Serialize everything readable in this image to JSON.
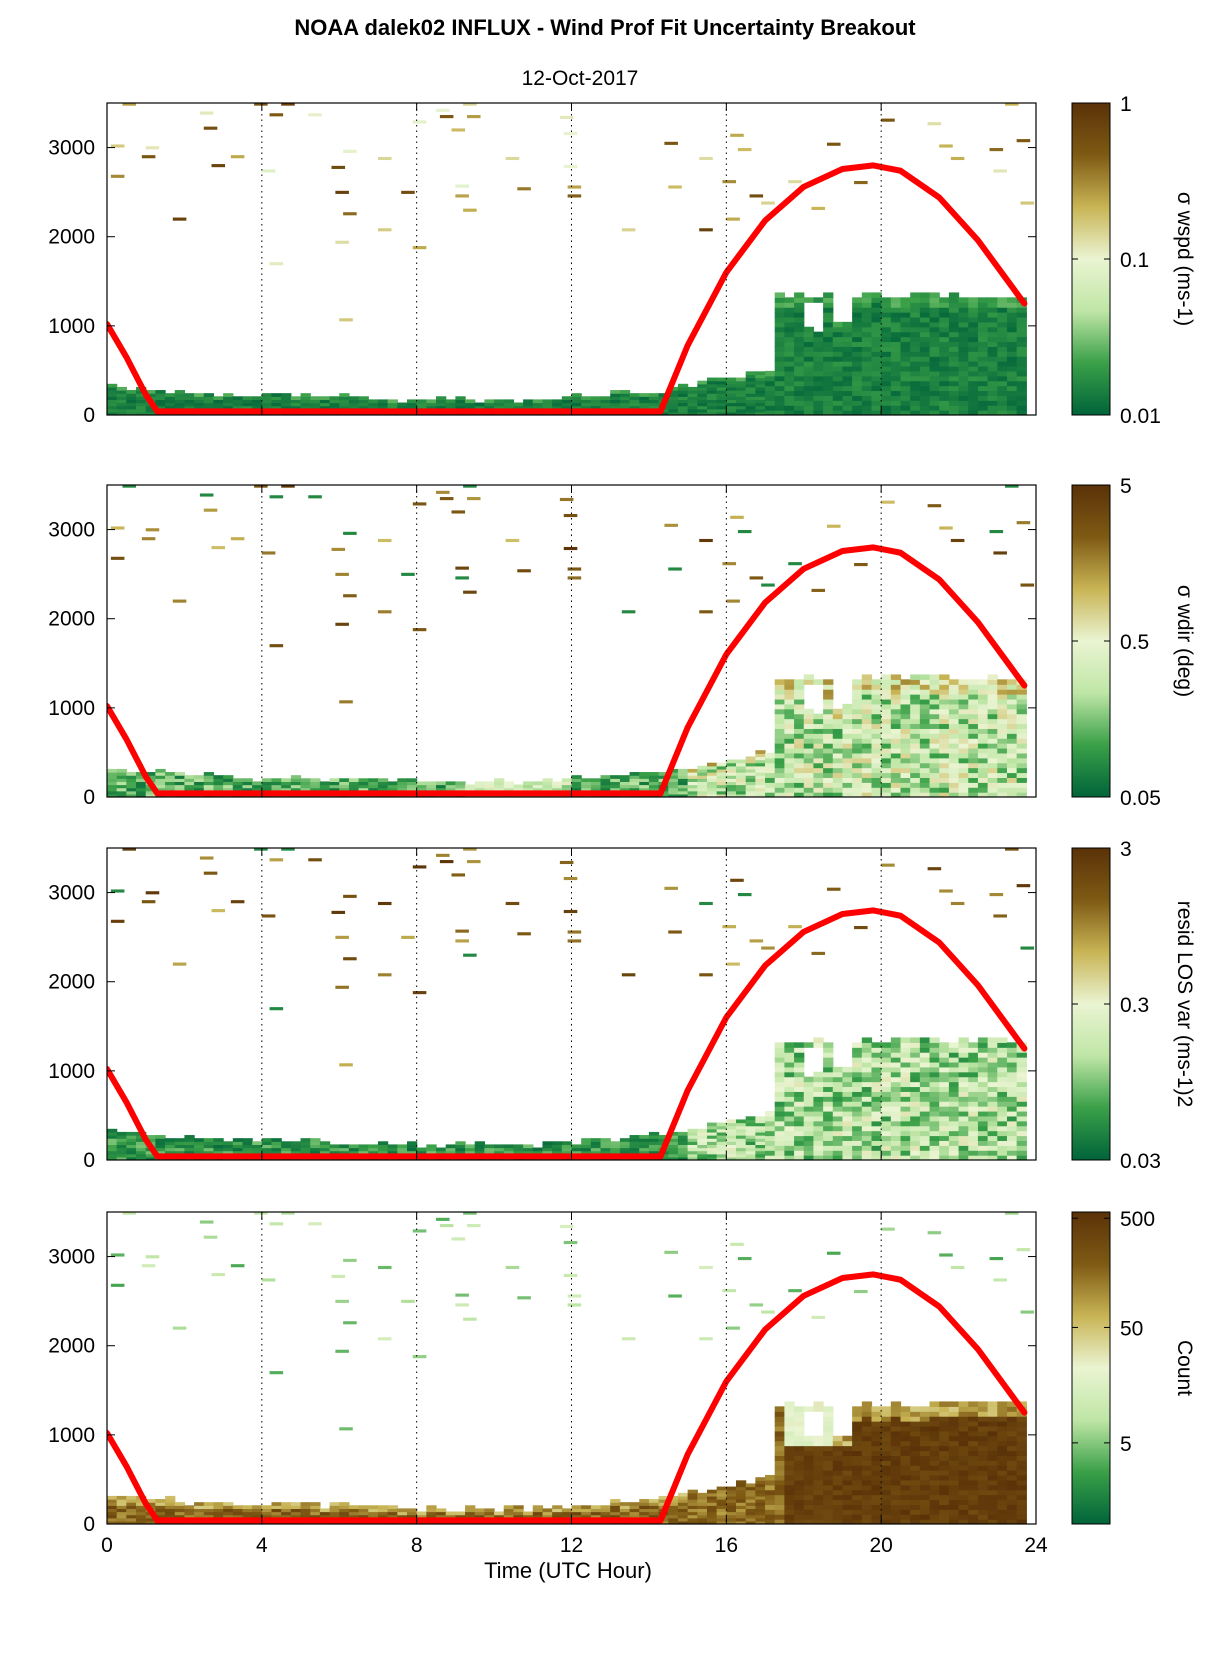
{
  "chart_data": {
    "type": "heatmap",
    "title": "NOAA dalek02 INFLUX - Wind Prof Fit Uncertainty Breakout",
    "subtitle": "12-Oct-2017",
    "xlabel": "Time (UTC Hour)",
    "xlim": [
      0,
      24
    ],
    "xticks": [
      "0",
      "4",
      "8",
      "12",
      "16",
      "20",
      "24"
    ],
    "ylim": [
      0,
      3500
    ],
    "yticks": [
      "0",
      "1000",
      "2000",
      "3000"
    ],
    "grid": "dotted vertical lines at 4, 8, 12, 16, 20",
    "colormap": [
      "#00643a",
      "#3aa048",
      "#bfe6a6",
      "#eaf4d2",
      "#c8b455",
      "#7e5a14",
      "#5a3208"
    ],
    "boundary_layer_curve": {
      "color": "#ff0000",
      "x": [
        0,
        0.5,
        1.0,
        1.3,
        14.3,
        15,
        16,
        17,
        18,
        19,
        19.8,
        20.5,
        21.5,
        22.5,
        23.7
      ],
      "y": [
        1020,
        650,
        230,
        40,
        40,
        780,
        1600,
        2180,
        2560,
        2760,
        2800,
        2740,
        2440,
        1960,
        1250
      ]
    },
    "panels": [
      {
        "name": "wspd",
        "colorbar_label": "σ wspd (ms-1)",
        "colorbar_ticks": [
          "1",
          "0.1",
          "0.01"
        ],
        "scale": "log",
        "color_range": [
          0.01,
          1
        ]
      },
      {
        "name": "wdir",
        "colorbar_label": "σ wdir (deg)",
        "colorbar_ticks": [
          "5",
          "0.5",
          "0.05"
        ],
        "scale": "log",
        "color_range": [
          0.05,
          5
        ]
      },
      {
        "name": "resid",
        "colorbar_label": "resid LOS var (ms-1)2",
        "colorbar_ticks": [
          "3",
          "0.3",
          "0.03"
        ],
        "scale": "log",
        "color_range": [
          0.03,
          3
        ]
      },
      {
        "name": "count",
        "colorbar_label": "Count",
        "colorbar_ticks": [
          "500",
          "50",
          "5"
        ],
        "scale": "log",
        "color_range": [
          0.5,
          500
        ]
      }
    ],
    "sparse_high_altitude_bins": [
      {
        "t": 0.1,
        "z": 3000
      },
      {
        "t": 0.1,
        "z": 2660
      },
      {
        "t": 0.4,
        "z": 3470
      },
      {
        "t": 0.9,
        "z": 2880
      },
      {
        "t": 1.0,
        "z": 2980
      },
      {
        "t": 1.7,
        "z": 2180
      },
      {
        "t": 2.4,
        "z": 3370
      },
      {
        "t": 2.5,
        "z": 3200
      },
      {
        "t": 2.7,
        "z": 2780
      },
      {
        "t": 3.2,
        "z": 2880
      },
      {
        "t": 3.8,
        "z": 3470
      },
      {
        "t": 4.0,
        "z": 2720
      },
      {
        "t": 4.2,
        "z": 3350
      },
      {
        "t": 4.2,
        "z": 1680
      },
      {
        "t": 4.5,
        "z": 3470
      },
      {
        "t": 5.2,
        "z": 3350
      },
      {
        "t": 5.8,
        "z": 2760
      },
      {
        "t": 5.9,
        "z": 2480
      },
      {
        "t": 5.9,
        "z": 1920
      },
      {
        "t": 6.0,
        "z": 1050
      },
      {
        "t": 6.1,
        "z": 2940
      },
      {
        "t": 6.1,
        "z": 2240
      },
      {
        "t": 7.0,
        "z": 2860
      },
      {
        "t": 7.0,
        "z": 2060
      },
      {
        "t": 7.6,
        "z": 2480
      },
      {
        "t": 7.9,
        "z": 3270
      },
      {
        "t": 7.9,
        "z": 1860
      },
      {
        "t": 8.5,
        "z": 3400
      },
      {
        "t": 8.6,
        "z": 3330
      },
      {
        "t": 8.9,
        "z": 3180
      },
      {
        "t": 9.0,
        "z": 2550
      },
      {
        "t": 9.0,
        "z": 2440
      },
      {
        "t": 9.2,
        "z": 2280
      },
      {
        "t": 9.2,
        "z": 3470
      },
      {
        "t": 9.3,
        "z": 3330
      },
      {
        "t": 10.3,
        "z": 2860
      },
      {
        "t": 10.6,
        "z": 2520
      },
      {
        "t": 11.7,
        "z": 3320
      },
      {
        "t": 11.8,
        "z": 3140
      },
      {
        "t": 11.8,
        "z": 2770
      },
      {
        "t": 11.9,
        "z": 2540
      },
      {
        "t": 11.9,
        "z": 2440
      },
      {
        "t": 13.3,
        "z": 2060
      },
      {
        "t": 14.4,
        "z": 3030
      },
      {
        "t": 14.5,
        "z": 2540
      },
      {
        "t": 15.3,
        "z": 2860
      },
      {
        "t": 15.3,
        "z": 2060
      },
      {
        "t": 15.9,
        "z": 2600
      },
      {
        "t": 16.0,
        "z": 2180
      },
      {
        "t": 16.1,
        "z": 3120
      },
      {
        "t": 16.3,
        "z": 2960
      },
      {
        "t": 16.6,
        "z": 2440
      },
      {
        "t": 16.9,
        "z": 2360
      },
      {
        "t": 17.6,
        "z": 2600
      },
      {
        "t": 18.2,
        "z": 2300
      },
      {
        "t": 18.6,
        "z": 3020
      },
      {
        "t": 19.3,
        "z": 2590
      },
      {
        "t": 20.0,
        "z": 3290
      },
      {
        "t": 21.2,
        "z": 3250
      },
      {
        "t": 21.5,
        "z": 3000
      },
      {
        "t": 21.8,
        "z": 2860
      },
      {
        "t": 22.8,
        "z": 2960
      },
      {
        "t": 22.9,
        "z": 2720
      },
      {
        "t": 23.2,
        "z": 3470
      },
      {
        "t": 23.5,
        "z": 3060
      },
      {
        "t": 23.6,
        "z": 2360
      }
    ]
  }
}
